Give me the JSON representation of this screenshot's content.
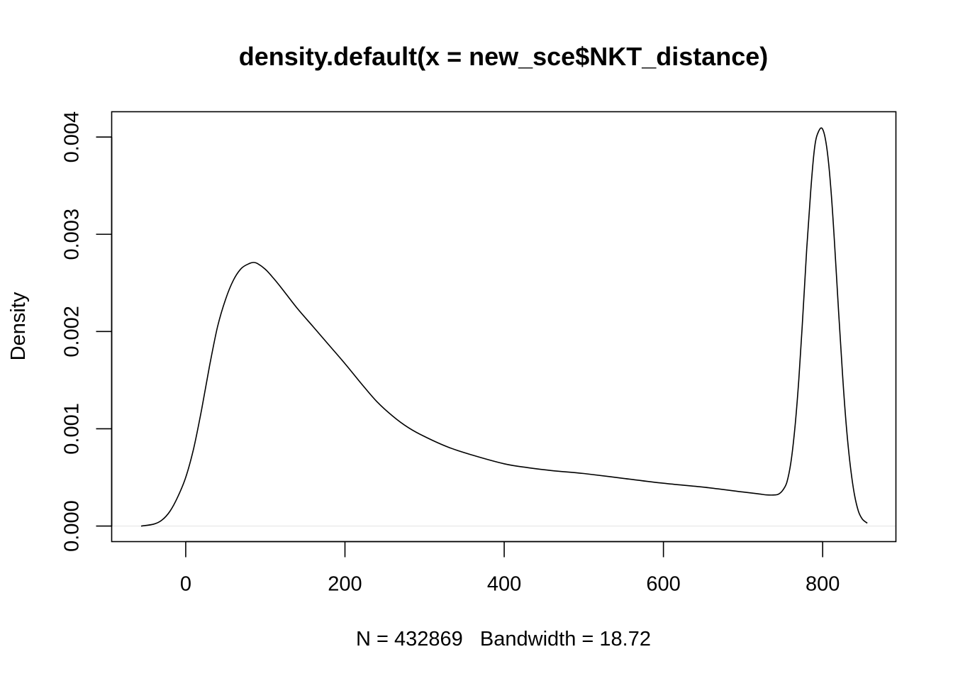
{
  "chart_data": {
    "type": "line",
    "title": "density.default(x = new_sce$NKT_distance)",
    "xlabel": "N = 432869   Bandwidth = 18.72",
    "ylabel": "Density",
    "xlim": [
      -93,
      892
    ],
    "ylim": [
      -0.00016,
      0.00426
    ],
    "x_ticks": [
      0,
      200,
      400,
      600,
      800
    ],
    "y_ticks": [
      0.0,
      0.001,
      0.002,
      0.003,
      0.004
    ],
    "x_tick_labels": [
      "0",
      "200",
      "400",
      "600",
      "800"
    ],
    "y_tick_labels": [
      "0.000",
      "0.001",
      "0.002",
      "0.003",
      "0.004"
    ],
    "grid": false,
    "series": [
      {
        "x": [
          -56,
          -40,
          -30,
          -20,
          -10,
          0,
          10,
          20,
          30,
          40,
          50,
          60,
          70,
          80,
          85,
          90,
          100,
          110,
          120,
          140,
          160,
          180,
          200,
          220,
          240,
          260,
          280,
          300,
          330,
          360,
          400,
          430,
          460,
          500,
          550,
          600,
          650,
          700,
          720,
          730,
          740,
          745,
          750,
          755,
          760,
          765,
          770,
          775,
          780,
          785,
          790,
          795,
          800,
          805,
          810,
          815,
          820,
          825,
          830,
          835,
          840,
          845,
          850,
          856
        ],
        "y": [
          0.0,
          2e-05,
          6e-05,
          0.00015,
          0.0003,
          0.0005,
          0.0008,
          0.0012,
          0.00165,
          0.00205,
          0.00233,
          0.00253,
          0.00265,
          0.0027,
          0.00271,
          0.0027,
          0.00264,
          0.00255,
          0.00245,
          0.00224,
          0.00205,
          0.00186,
          0.00167,
          0.00147,
          0.00128,
          0.00113,
          0.00101,
          0.00092,
          0.00081,
          0.00073,
          0.00064,
          0.0006,
          0.00057,
          0.00054,
          0.00049,
          0.00044,
          0.0004,
          0.00035,
          0.00033,
          0.00032,
          0.00032,
          0.00033,
          0.00037,
          0.00045,
          0.00065,
          0.001,
          0.0015,
          0.00215,
          0.00285,
          0.00345,
          0.0039,
          0.00406,
          0.00408,
          0.0039,
          0.0035,
          0.0029,
          0.0022,
          0.00155,
          0.001,
          0.0006,
          0.00032,
          0.00015,
          7e-05,
          3e-05
        ]
      }
    ]
  }
}
